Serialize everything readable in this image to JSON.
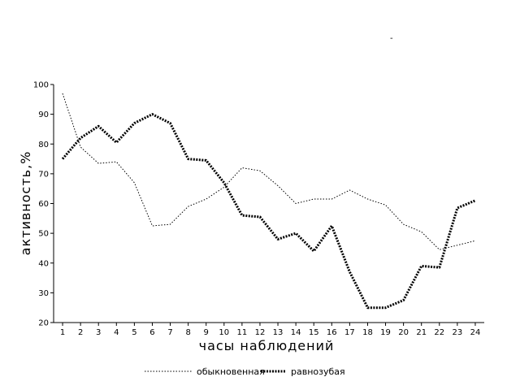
{
  "chart_data": {
    "type": "line",
    "xlabel": "часы  наблюдений",
    "ylabel": "активность,%",
    "x": [
      1,
      2,
      3,
      4,
      5,
      6,
      7,
      8,
      9,
      10,
      11,
      12,
      13,
      14,
      15,
      16,
      17,
      18,
      19,
      20,
      21,
      22,
      23,
      24
    ],
    "xlim": [
      0.5,
      24.5
    ],
    "ylim": [
      20,
      100
    ],
    "yticks": [
      20,
      30,
      40,
      50,
      60,
      70,
      80,
      90,
      100
    ],
    "grid": false,
    "legend_position": "bottom-center",
    "series": [
      {
        "name": "обыкновенная",
        "style": "dotted-thin",
        "color": "#000000",
        "values": [
          97,
          79,
          73.5,
          74,
          67,
          52.5,
          53,
          59,
          61.5,
          65.5,
          72,
          71,
          66,
          60,
          61.5,
          61.5,
          64.5,
          61.5,
          59.5,
          53,
          50.5,
          44.5,
          46,
          47.5
        ]
      },
      {
        "name": "равнозубая",
        "style": "dotted-thick",
        "color": "#000000",
        "values": [
          75,
          82,
          86,
          80.5,
          87,
          90,
          87,
          75,
          74.5,
          67,
          56,
          55.5,
          48,
          50,
          44,
          52.5,
          37,
          25,
          25,
          27.5,
          39,
          38.5,
          58.5,
          61
        ]
      }
    ]
  }
}
